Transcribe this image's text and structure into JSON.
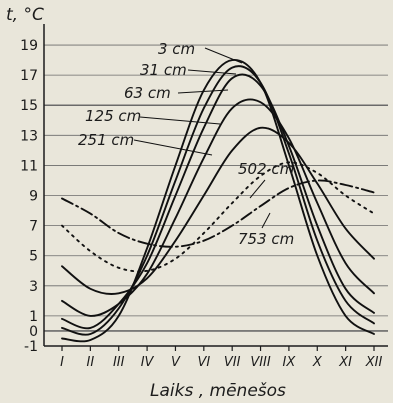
{
  "chart_data": {
    "type": "line",
    "xlabel": "Laiks , mēnešos",
    "ylabel": "t, °C",
    "categories": [
      "I",
      "II",
      "III",
      "IV",
      "V",
      "VI",
      "VII",
      "VIII",
      "IX",
      "X",
      "XI",
      "XII"
    ],
    "yticks": [
      -1,
      0,
      1,
      3,
      5,
      7,
      9,
      11,
      13,
      15,
      17,
      19
    ],
    "ylim": [
      -1,
      20
    ],
    "grid": true,
    "series": [
      {
        "name": "3 cm",
        "style": "solid",
        "values": [
          -0.5,
          -0.6,
          1.0,
          5.5,
          11.0,
          16.0,
          18.0,
          16.5,
          11.0,
          5.0,
          1.0,
          -0.2
        ]
      },
      {
        "name": "31 cm",
        "style": "solid",
        "values": [
          0.2,
          -0.2,
          1.5,
          5.0,
          10.0,
          14.8,
          17.5,
          16.5,
          11.8,
          6.0,
          2.0,
          0.5
        ]
      },
      {
        "name": "63 cm",
        "style": "solid",
        "values": [
          0.8,
          0.2,
          1.8,
          4.5,
          9.0,
          13.5,
          16.8,
          16.3,
          12.3,
          7.0,
          2.8,
          1.2
        ]
      },
      {
        "name": "125 cm",
        "style": "solid",
        "values": [
          2.0,
          1.0,
          1.8,
          3.8,
          7.5,
          11.5,
          14.8,
          15.2,
          12.8,
          8.5,
          4.5,
          2.5
        ]
      },
      {
        "name": "251 cm",
        "style": "solid",
        "values": [
          4.3,
          2.8,
          2.5,
          3.5,
          6.0,
          9.0,
          12.0,
          13.5,
          12.5,
          9.8,
          6.8,
          4.8
        ]
      },
      {
        "name": "502 cm",
        "style": "dotted",
        "values": [
          7.0,
          5.3,
          4.2,
          4.0,
          4.8,
          6.5,
          8.5,
          10.3,
          11.2,
          10.5,
          9.0,
          7.8
        ]
      },
      {
        "name": "753 cm",
        "style": "dashdot",
        "values": [
          8.8,
          7.8,
          6.5,
          5.8,
          5.6,
          6.0,
          7.0,
          8.3,
          9.5,
          10.0,
          9.7,
          9.2
        ]
      }
    ]
  }
}
